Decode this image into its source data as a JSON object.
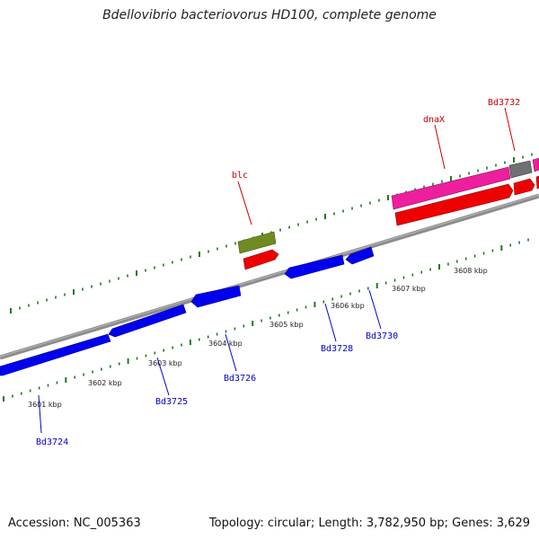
{
  "title": "Bdellovibrio bacteriovorus HD100, complete genome",
  "footer": {
    "accession": "Accession: NC_005363",
    "summary": "Topology: circular; Length: 3,782,950 bp; Genes: 3,629"
  },
  "colors": {
    "backbone": "#8c8c8c",
    "tick": "#1d7a1d",
    "gene_label_forward": "#cc0000",
    "gene_label_reverse": "#0000cc",
    "cds_reverse": "#0000ee",
    "cds_forward": "#ee0000",
    "rna_pink": "#ee1f9c",
    "olive": "#6f8b22",
    "gray": "#707070"
  },
  "ruler": {
    "labels": [
      "3601 kbp",
      "3602 kbp",
      "3603 kbp",
      "3604 kbp",
      "3605 kbp",
      "3606 kbp",
      "3607 kbp",
      "3608 kbp"
    ]
  },
  "gene_labels": [
    {
      "text": "blc",
      "strand": "forward"
    },
    {
      "text": "dnaX",
      "strand": "forward"
    },
    {
      "text": "Bd3732",
      "strand": "forward"
    },
    {
      "text": "Bd3724",
      "strand": "reverse"
    },
    {
      "text": "Bd3725",
      "strand": "reverse"
    },
    {
      "text": "Bd3726",
      "strand": "reverse"
    },
    {
      "text": "Bd3728",
      "strand": "reverse"
    },
    {
      "text": "Bd3730",
      "strand": "reverse"
    }
  ]
}
